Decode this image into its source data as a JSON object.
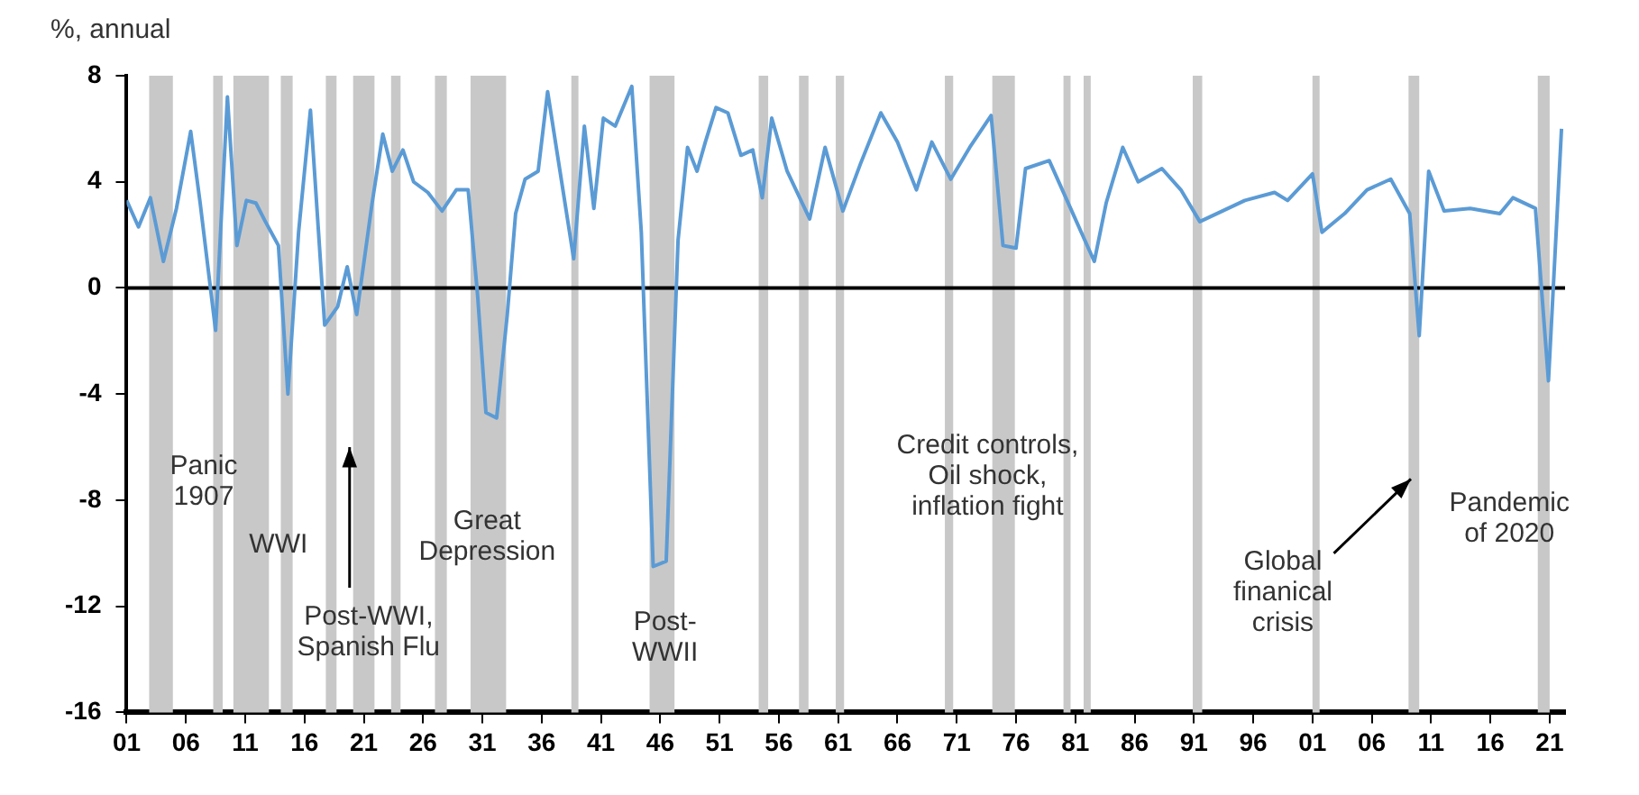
{
  "chart_data": {
    "type": "line",
    "subtitle": "%, annual",
    "x": [
      1901.0,
      1902.0,
      1903.0,
      1904.1,
      1905.2,
      1906.4,
      1907.2,
      1908.5,
      1909.5,
      1910.3,
      1911.1,
      1911.9,
      1912.7,
      1913.8,
      1914.6,
      1915.5,
      1916.5,
      1917.7,
      1918.8,
      1919.6,
      1920.4,
      1921.7,
      1922.6,
      1923.4,
      1924.3,
      1925.2,
      1926.4,
      1927.6,
      1928.8,
      1929.8,
      1930.6,
      1931.3,
      1932.2,
      1933.1,
      1933.8,
      1934.6,
      1935.7,
      1936.5,
      1937.3,
      1938.7,
      1939.6,
      1940.4,
      1941.2,
      1942.2,
      1943.6,
      1944.4,
      1945.4,
      1946.5,
      1947.5,
      1948.3,
      1949.1,
      1949.8,
      1950.7,
      1951.7,
      1952.8,
      1953.8,
      1954.6,
      1955.4,
      1956.7,
      1958.6,
      1959.9,
      1961.4,
      1962.9,
      1964.6,
      1966.0,
      1967.6,
      1968.9,
      1970.5,
      1972.1,
      1973.9,
      1974.9,
      1976.0,
      1976.8,
      1978.8,
      1981.1,
      1982.6,
      1983.6,
      1985.0,
      1986.3,
      1988.3,
      1989.9,
      1991.5,
      1993.4,
      1995.3,
      1997.8,
      1998.9,
      2001.0,
      2001.8,
      2003.7,
      2005.6,
      2007.6,
      2009.2,
      2010.0,
      2010.8,
      2012.1,
      2014.3,
      2016.8,
      2017.9,
      2019.8,
      2020.9,
      2022.0
    ],
    "series": [
      {
        "color": "#5b9bd5",
        "values": [
          3.3,
          2.3,
          3.4,
          1.0,
          3.0,
          5.9,
          3.2,
          -1.6,
          7.2,
          1.6,
          3.3,
          3.2,
          2.5,
          1.6,
          -4.0,
          2.1,
          6.7,
          -1.4,
          -0.7,
          0.8,
          -1.0,
          3.2,
          5.8,
          4.4,
          5.2,
          4.0,
          3.6,
          2.9,
          3.7,
          3.7,
          -0.3,
          -4.7,
          -4.9,
          -1.0,
          2.8,
          4.1,
          4.4,
          7.4,
          5.1,
          1.1,
          6.1,
          3.0,
          6.4,
          6.1,
          7.6,
          2.1,
          -10.5,
          -10.3,
          1.8,
          5.3,
          4.4,
          5.5,
          6.8,
          6.6,
          5.0,
          5.2,
          3.4,
          6.4,
          4.4,
          2.6,
          5.3,
          2.9,
          4.7,
          6.6,
          5.5,
          3.7,
          5.5,
          4.1,
          5.3,
          6.5,
          1.6,
          1.5,
          4.5,
          4.8,
          2.5,
          1.0,
          3.2,
          5.3,
          4.0,
          4.5,
          3.7,
          2.5,
          2.9,
          3.3,
          3.6,
          3.3,
          4.3,
          2.1,
          2.8,
          3.7,
          4.1,
          2.8,
          -1.8,
          4.4,
          2.9,
          3.0,
          2.8,
          3.4,
          3.0,
          -3.5,
          6.0
        ]
      }
    ],
    "xlim": [
      1901,
      2022.3
    ],
    "xticks": [
      {
        "value": 1901,
        "label": "01"
      },
      {
        "value": 1906,
        "label": "06"
      },
      {
        "value": 1911,
        "label": "11"
      },
      {
        "value": 1916,
        "label": "16"
      },
      {
        "value": 1921,
        "label": "21"
      },
      {
        "value": 1926,
        "label": "26"
      },
      {
        "value": 1931,
        "label": "31"
      },
      {
        "value": 1936,
        "label": "36"
      },
      {
        "value": 1941,
        "label": "41"
      },
      {
        "value": 1946,
        "label": "46"
      },
      {
        "value": 1951,
        "label": "51"
      },
      {
        "value": 1956,
        "label": "56"
      },
      {
        "value": 1961,
        "label": "61"
      },
      {
        "value": 1966,
        "label": "66"
      },
      {
        "value": 1971,
        "label": "71"
      },
      {
        "value": 1976,
        "label": "76"
      },
      {
        "value": 1981,
        "label": "81"
      },
      {
        "value": 1986,
        "label": "86"
      },
      {
        "value": 1991,
        "label": "91"
      },
      {
        "value": 1996,
        "label": "96"
      },
      {
        "value": 2001,
        "label": "01"
      },
      {
        "value": 2006,
        "label": "06"
      },
      {
        "value": 2011,
        "label": "11"
      },
      {
        "value": 2016,
        "label": "16"
      },
      {
        "value": 2021,
        "label": "21"
      }
    ],
    "ylim": [
      -16,
      8
    ],
    "yticks": [
      -16,
      -12,
      -8,
      -4,
      0,
      4,
      8
    ],
    "grid": false,
    "legend": false,
    "marker": "none",
    "line_style": "solid",
    "ref_lines": [
      {
        "axis": "y",
        "value": 0,
        "color": "#000000"
      }
    ],
    "bands": [
      {
        "axis": "x",
        "from": 1902.9,
        "to": 1904.9,
        "color": "#c8c8c8"
      },
      {
        "axis": "x",
        "from": 1908.3,
        "to": 1909.1,
        "color": "#c8c8c8"
      },
      {
        "axis": "x",
        "from": 1910.0,
        "to": 1913.0,
        "color": "#c8c8c8"
      },
      {
        "axis": "x",
        "from": 1914.0,
        "to": 1915.0,
        "color": "#c8c8c8"
      },
      {
        "axis": "x",
        "from": 1917.8,
        "to": 1918.7,
        "color": "#c8c8c8"
      },
      {
        "axis": "x",
        "from": 1920.1,
        "to": 1921.9,
        "color": "#c8c8c8"
      },
      {
        "axis": "x",
        "from": 1923.3,
        "to": 1924.1,
        "color": "#c8c8c8"
      },
      {
        "axis": "x",
        "from": 1927.0,
        "to": 1928.0,
        "color": "#c8c8c8"
      },
      {
        "axis": "x",
        "from": 1930.0,
        "to": 1933.0,
        "color": "#c8c8c8"
      },
      {
        "axis": "x",
        "from": 1938.5,
        "to": 1939.1,
        "color": "#c8c8c8"
      },
      {
        "axis": "x",
        "from": 1945.1,
        "to": 1947.2,
        "color": "#c8c8c8"
      },
      {
        "axis": "x",
        "from": 1954.3,
        "to": 1955.1,
        "color": "#c8c8c8"
      },
      {
        "axis": "x",
        "from": 1957.7,
        "to": 1958.5,
        "color": "#c8c8c8"
      },
      {
        "axis": "x",
        "from": 1960.8,
        "to": 1961.5,
        "color": "#c8c8c8"
      },
      {
        "axis": "x",
        "from": 1970.0,
        "to": 1970.7,
        "color": "#c8c8c8"
      },
      {
        "axis": "x",
        "from": 1974.0,
        "to": 1975.9,
        "color": "#c8c8c8"
      },
      {
        "axis": "x",
        "from": 1980.0,
        "to": 1980.6,
        "color": "#c8c8c8"
      },
      {
        "axis": "x",
        "from": 1981.7,
        "to": 1982.3,
        "color": "#c8c8c8"
      },
      {
        "axis": "x",
        "from": 1990.9,
        "to": 1991.7,
        "color": "#c8c8c8"
      },
      {
        "axis": "x",
        "from": 2001.0,
        "to": 2001.6,
        "color": "#c8c8c8"
      },
      {
        "axis": "x",
        "from": 2009.1,
        "to": 2010.0,
        "color": "#c8c8c8"
      },
      {
        "axis": "x",
        "from": 2020.0,
        "to": 2021.0,
        "color": "#c8c8c8"
      }
    ],
    "annotations": [
      "Panic\n1907",
      "WWI",
      {
        "text": "Post-WWI,\nSpanish Flu",
        "x": 1919.8,
        "y": -6.0
      },
      "Great\nDepression",
      "Post-\nWWII",
      "Credit controls,\nOil shock,\ninflation fight",
      {
        "text": "Global\nfinanical\ncrisis",
        "x": 2009.3,
        "y": -7.2
      },
      "Pandemic\nof 2020"
    ]
  }
}
